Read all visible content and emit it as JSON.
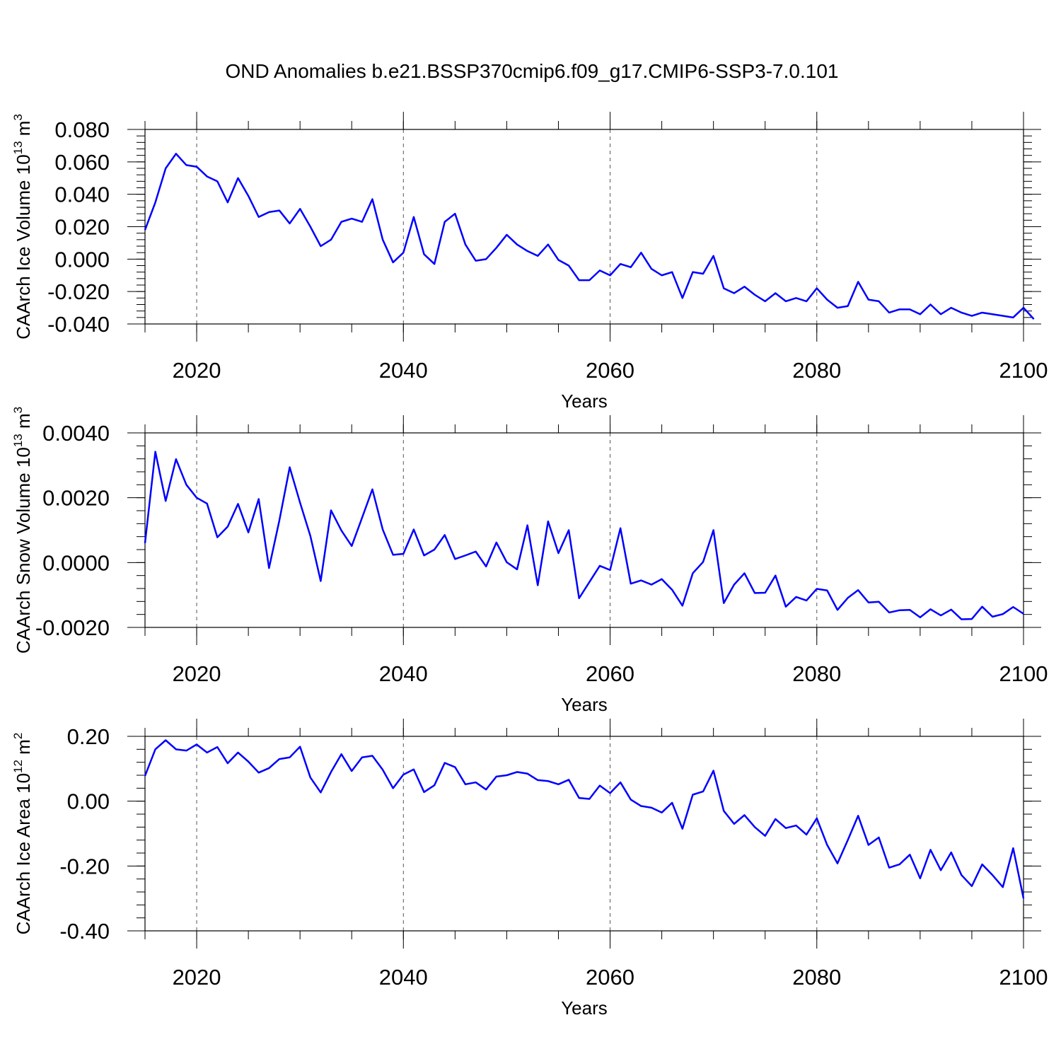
{
  "title": "OND Anomalies b.e21.BSSP370cmip6.f09_g17.CMIP6-SSP3-7.0.101",
  "colors": {
    "line": "#0000ff",
    "axis": "#000000",
    "grid": "#555555"
  },
  "chart_data": [
    {
      "type": "line",
      "ylabel": "CAArch Ice Volume 10",
      "ylabel_exponent": "13",
      "ylabel_unit": " m",
      "ylabel_unit_exponent": "3",
      "xlabel": "Years",
      "xlim": [
        2015,
        2100
      ],
      "ylim": [
        -0.04,
        0.08
      ],
      "yticks": [
        -0.04,
        -0.02,
        0.0,
        0.02,
        0.04,
        0.06,
        0.08
      ],
      "ytick_labels": [
        "-0.040",
        "-0.020",
        "0.000",
        "0.020",
        "0.040",
        "0.060",
        "0.080"
      ],
      "xticks": [
        2020,
        2040,
        2060,
        2080,
        2100
      ],
      "xtick_labels": [
        "2020",
        "2040",
        "2060",
        "2080",
        "2100"
      ],
      "grid_x": [
        2020,
        2040,
        2060,
        2080
      ],
      "x_start": 2015,
      "values": [
        0.018,
        0.035,
        0.056,
        0.065,
        0.058,
        0.057,
        0.051,
        0.048,
        0.035,
        0.05,
        0.039,
        0.026,
        0.029,
        0.03,
        0.022,
        0.031,
        0.02,
        0.008,
        0.012,
        0.023,
        0.025,
        0.023,
        0.037,
        0.012,
        -0.002,
        0.004,
        0.026,
        0.003,
        -0.003,
        0.023,
        0.028,
        0.009,
        -0.001,
        0.0,
        0.007,
        0.015,
        0.009,
        0.005,
        0.002,
        0.009,
        -0.0005,
        -0.004,
        -0.013,
        -0.013,
        -0.007,
        -0.01,
        -0.003,
        -0.005,
        0.004,
        -0.006,
        -0.01,
        -0.008,
        -0.024,
        -0.008,
        -0.009,
        0.002,
        -0.018,
        -0.021,
        -0.017,
        -0.022,
        -0.026,
        -0.021,
        -0.026,
        -0.024,
        -0.026,
        -0.018,
        -0.025,
        -0.03,
        -0.029,
        -0.014,
        -0.025,
        -0.026,
        -0.033,
        -0.031,
        -0.031,
        -0.034,
        -0.028,
        -0.034,
        -0.03,
        -0.033,
        -0.035,
        -0.033,
        -0.034,
        -0.035,
        -0.036,
        -0.03,
        -0.037
      ]
    },
    {
      "type": "line",
      "ylabel": "CAArch Snow Volume 10",
      "ylabel_exponent": "13",
      "ylabel_unit": " m",
      "ylabel_unit_exponent": "3",
      "xlabel": "Years",
      "xlim": [
        2015,
        2100
      ],
      "ylim": [
        -0.002,
        0.004
      ],
      "yticks": [
        -0.002,
        0.0,
        0.002,
        0.004
      ],
      "ytick_labels": [
        "-0.0020",
        "0.0000",
        "0.0020",
        "0.0040"
      ],
      "xticks": [
        2020,
        2040,
        2060,
        2080,
        2100
      ],
      "xtick_labels": [
        "2020",
        "2040",
        "2060",
        "2080",
        "2100"
      ],
      "grid_x": [
        2020,
        2040,
        2060,
        2080
      ],
      "x_start": 2015,
      "values": [
        0.0006,
        0.00342,
        0.0019,
        0.00319,
        0.0024,
        0.002,
        0.00182,
        0.00078,
        0.00111,
        0.00181,
        0.00093,
        0.00196,
        -0.00017,
        0.0013,
        0.00294,
        0.00185,
        0.00082,
        -0.00057,
        0.00161,
        0.00099,
        0.00051,
        0.00138,
        0.00226,
        0.00102,
        0.00024,
        0.00027,
        0.00102,
        0.00022,
        0.0004,
        0.00085,
        0.00011,
        0.00022,
        0.00034,
        -0.00012,
        0.00062,
        1e-05,
        -0.00021,
        0.00115,
        -0.0007,
        0.00127,
        0.00029,
        0.001,
        -0.0011,
        -0.0006,
        -0.0001,
        -0.00023,
        0.00106,
        -0.00065,
        -0.00055,
        -0.00068,
        -0.00051,
        -0.00084,
        -0.00133,
        -0.00033,
        2e-05,
        0.001,
        -0.00125,
        -0.00068,
        -0.00033,
        -0.00094,
        -0.00093,
        -0.0004,
        -0.00136,
        -0.00106,
        -0.00117,
        -0.00081,
        -0.00086,
        -0.00146,
        -0.00109,
        -0.00085,
        -0.00123,
        -0.00121,
        -0.00154,
        -0.00147,
        -0.00146,
        -0.00169,
        -0.00144,
        -0.00163,
        -0.00145,
        -0.00175,
        -0.00174,
        -0.00136,
        -0.00167,
        -0.00159,
        -0.00137,
        -0.00158
      ]
    },
    {
      "type": "line",
      "ylabel": "CAArch Ice Area 10",
      "ylabel_exponent": "12",
      "ylabel_unit": " m",
      "ylabel_unit_exponent": "2",
      "xlabel": "Years",
      "xlim": [
        2015,
        2100
      ],
      "ylim": [
        -0.4,
        0.2
      ],
      "yticks": [
        -0.4,
        -0.2,
        0.0,
        0.2
      ],
      "ytick_labels": [
        "-0.40",
        "-0.20",
        "0.00",
        "0.20"
      ],
      "xticks": [
        2020,
        2040,
        2060,
        2080,
        2100
      ],
      "xtick_labels": [
        "2020",
        "2040",
        "2060",
        "2080",
        "2100"
      ],
      "grid_x": [
        2020,
        2040,
        2060,
        2080
      ],
      "x_start": 2015,
      "values": [
        0.078,
        0.16,
        0.188,
        0.16,
        0.156,
        0.175,
        0.15,
        0.167,
        0.117,
        0.15,
        0.122,
        0.088,
        0.102,
        0.13,
        0.135,
        0.168,
        0.073,
        0.027,
        0.09,
        0.145,
        0.093,
        0.135,
        0.14,
        0.097,
        0.04,
        0.082,
        0.098,
        0.028,
        0.049,
        0.118,
        0.105,
        0.052,
        0.058,
        0.036,
        0.076,
        0.08,
        0.09,
        0.085,
        0.065,
        0.062,
        0.052,
        0.066,
        0.01,
        0.007,
        0.048,
        0.025,
        0.058,
        0.005,
        -0.015,
        -0.02,
        -0.035,
        -0.005,
        -0.085,
        0.02,
        0.03,
        0.094,
        -0.03,
        -0.07,
        -0.043,
        -0.08,
        -0.107,
        -0.055,
        -0.083,
        -0.075,
        -0.103,
        -0.053,
        -0.135,
        -0.192,
        -0.12,
        -0.045,
        -0.135,
        -0.112,
        -0.205,
        -0.195,
        -0.165,
        -0.238,
        -0.15,
        -0.213,
        -0.158,
        -0.228,
        -0.262,
        -0.195,
        -0.228,
        -0.265,
        -0.145,
        -0.3
      ]
    }
  ]
}
